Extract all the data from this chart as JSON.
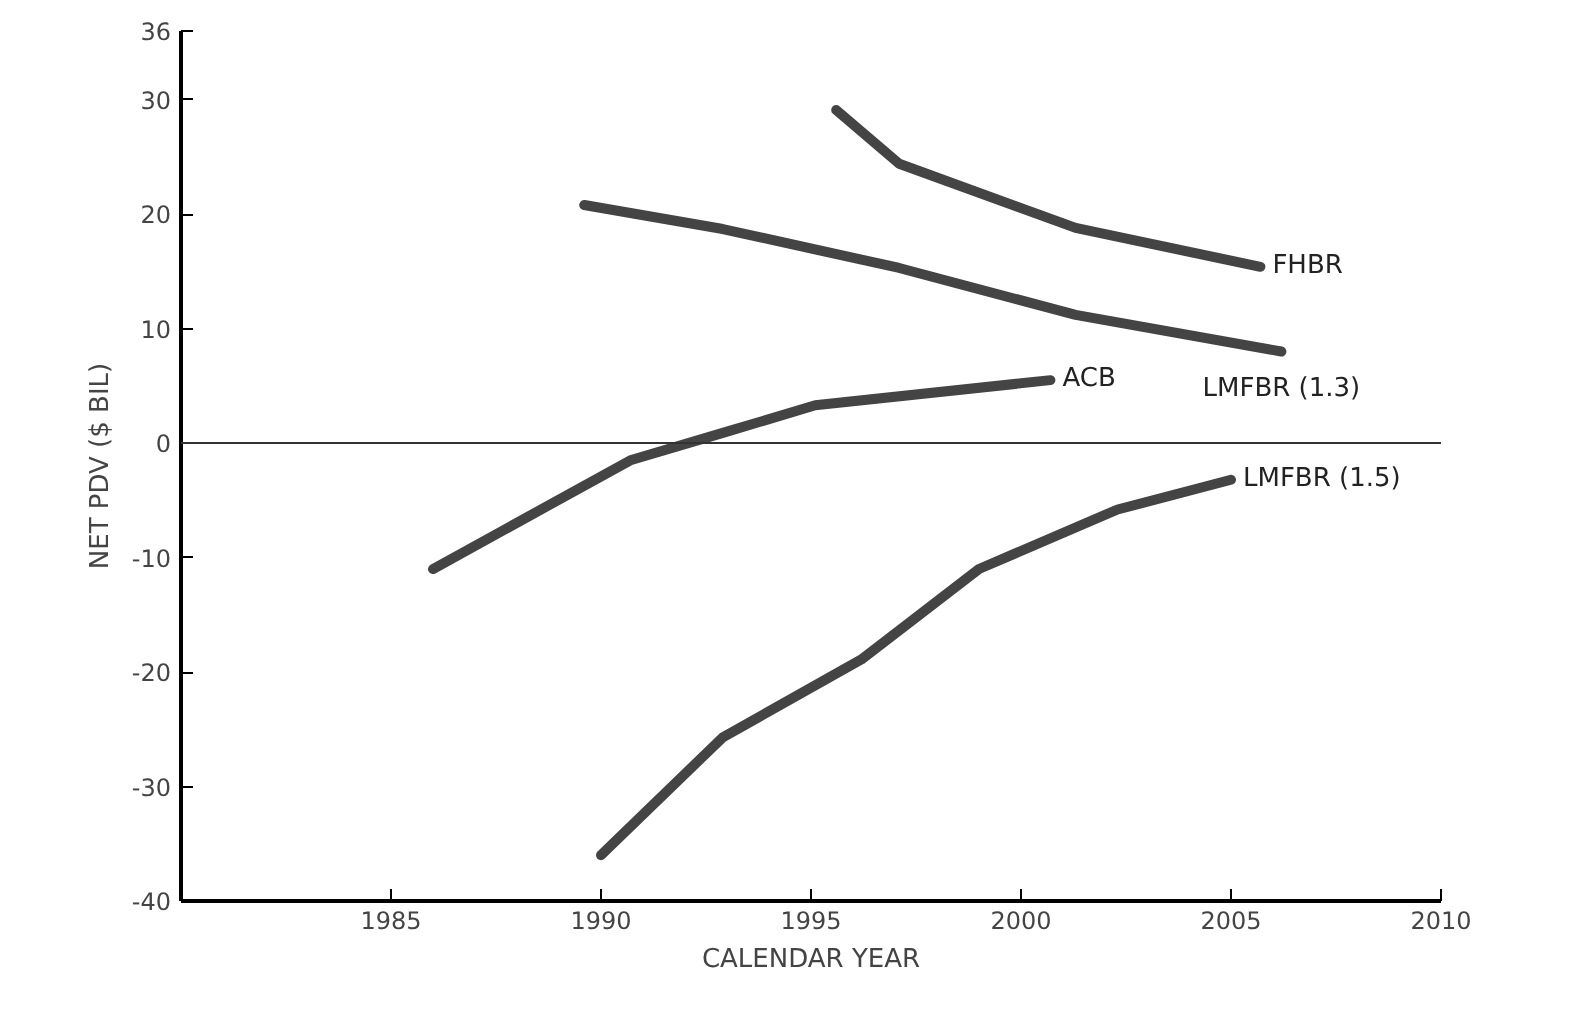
{
  "chart_data": {
    "type": "line",
    "xlabel": "CALENDAR YEAR",
    "ylabel": "NET PDV ($ BIL)",
    "xlim": [
      1980,
      2010
    ],
    "xticks": [
      1985,
      1990,
      1995,
      2000,
      2005,
      2010
    ],
    "ylim": [
      -40,
      36
    ],
    "yticks": [
      -40,
      -30,
      -20,
      -10,
      0,
      10,
      20,
      30,
      36
    ],
    "grid": false,
    "marker": "none",
    "line_style": "solid",
    "ref_lines": [
      {
        "axis": "y",
        "value": 0,
        "color": "#333333"
      }
    ],
    "series": [
      {
        "name": "FHBR",
        "color": "#444444",
        "x": [
          1995.6,
          1997.1,
          2001.3,
          2005.7
        ],
        "values": [
          29.1,
          24.4,
          18.8,
          15.4
        ]
      },
      {
        "name": "LMFBR (1.3)",
        "color": "#444444",
        "x": [
          1989.6,
          1992.9,
          1997.1,
          2001.3,
          2006.2
        ],
        "values": [
          20.8,
          18.7,
          15.3,
          11.2,
          8.0
        ]
      },
      {
        "name": "ACB",
        "color": "#444444",
        "x": [
          1986,
          1990.7,
          1993,
          1995.1,
          2000.7
        ],
        "values": [
          -11,
          -1.5,
          1,
          3.3,
          5.5
        ]
      },
      {
        "name": "LMFBR (1.5)",
        "color": "#444444",
        "x": [
          1990,
          1992.9,
          1996.2,
          1999,
          2002.3,
          2005
        ],
        "values": [
          -36,
          -25.7,
          -18.9,
          -11,
          -5.8,
          -3.2
        ]
      }
    ]
  }
}
